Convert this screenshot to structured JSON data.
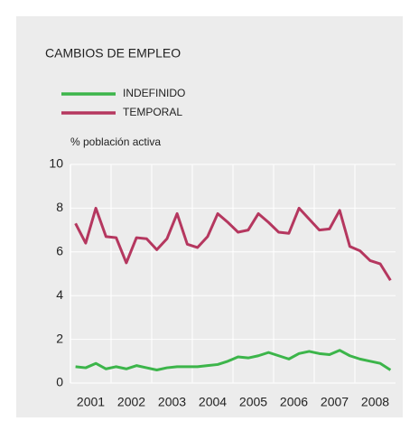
{
  "chart_data": {
    "type": "line",
    "title": "CAMBIOS DE EMPLEO",
    "y_label": "% población activa",
    "categories": [
      "2001",
      null,
      null,
      null,
      "2002",
      null,
      null,
      null,
      "2003",
      null,
      null,
      null,
      "2004",
      null,
      null,
      null,
      "2005",
      null,
      null,
      null,
      "2006",
      null,
      null,
      null,
      "2007",
      null,
      null,
      null,
      "2008",
      null,
      null,
      null
    ],
    "series": [
      {
        "name": "INDEFINIDO",
        "color": "#3cb54a",
        "values": [
          0.75,
          0.7,
          0.9,
          0.65,
          0.75,
          0.65,
          0.8,
          0.7,
          0.6,
          0.7,
          0.75,
          0.75,
          0.75,
          0.8,
          0.85,
          1.0,
          1.2,
          1.15,
          1.25,
          1.4,
          1.25,
          1.1,
          1.35,
          1.45,
          1.35,
          1.3,
          1.5,
          1.25,
          1.1,
          1.0,
          0.9,
          0.6
        ]
      },
      {
        "name": "TEMPORAL",
        "color": "#b5375f",
        "values": [
          7.3,
          6.4,
          8.0,
          6.7,
          6.65,
          5.5,
          6.65,
          6.6,
          6.1,
          6.6,
          7.75,
          6.35,
          6.2,
          6.7,
          7.75,
          7.35,
          6.9,
          7.0,
          7.75,
          7.35,
          6.9,
          6.85,
          8.0,
          7.5,
          7.0,
          7.05,
          7.9,
          6.25,
          6.05,
          5.6,
          5.45,
          4.7
        ]
      }
    ],
    "ylim": [
      0,
      10
    ],
    "yticks": [
      0,
      2,
      4,
      6,
      8,
      10
    ],
    "grid": true
  }
}
